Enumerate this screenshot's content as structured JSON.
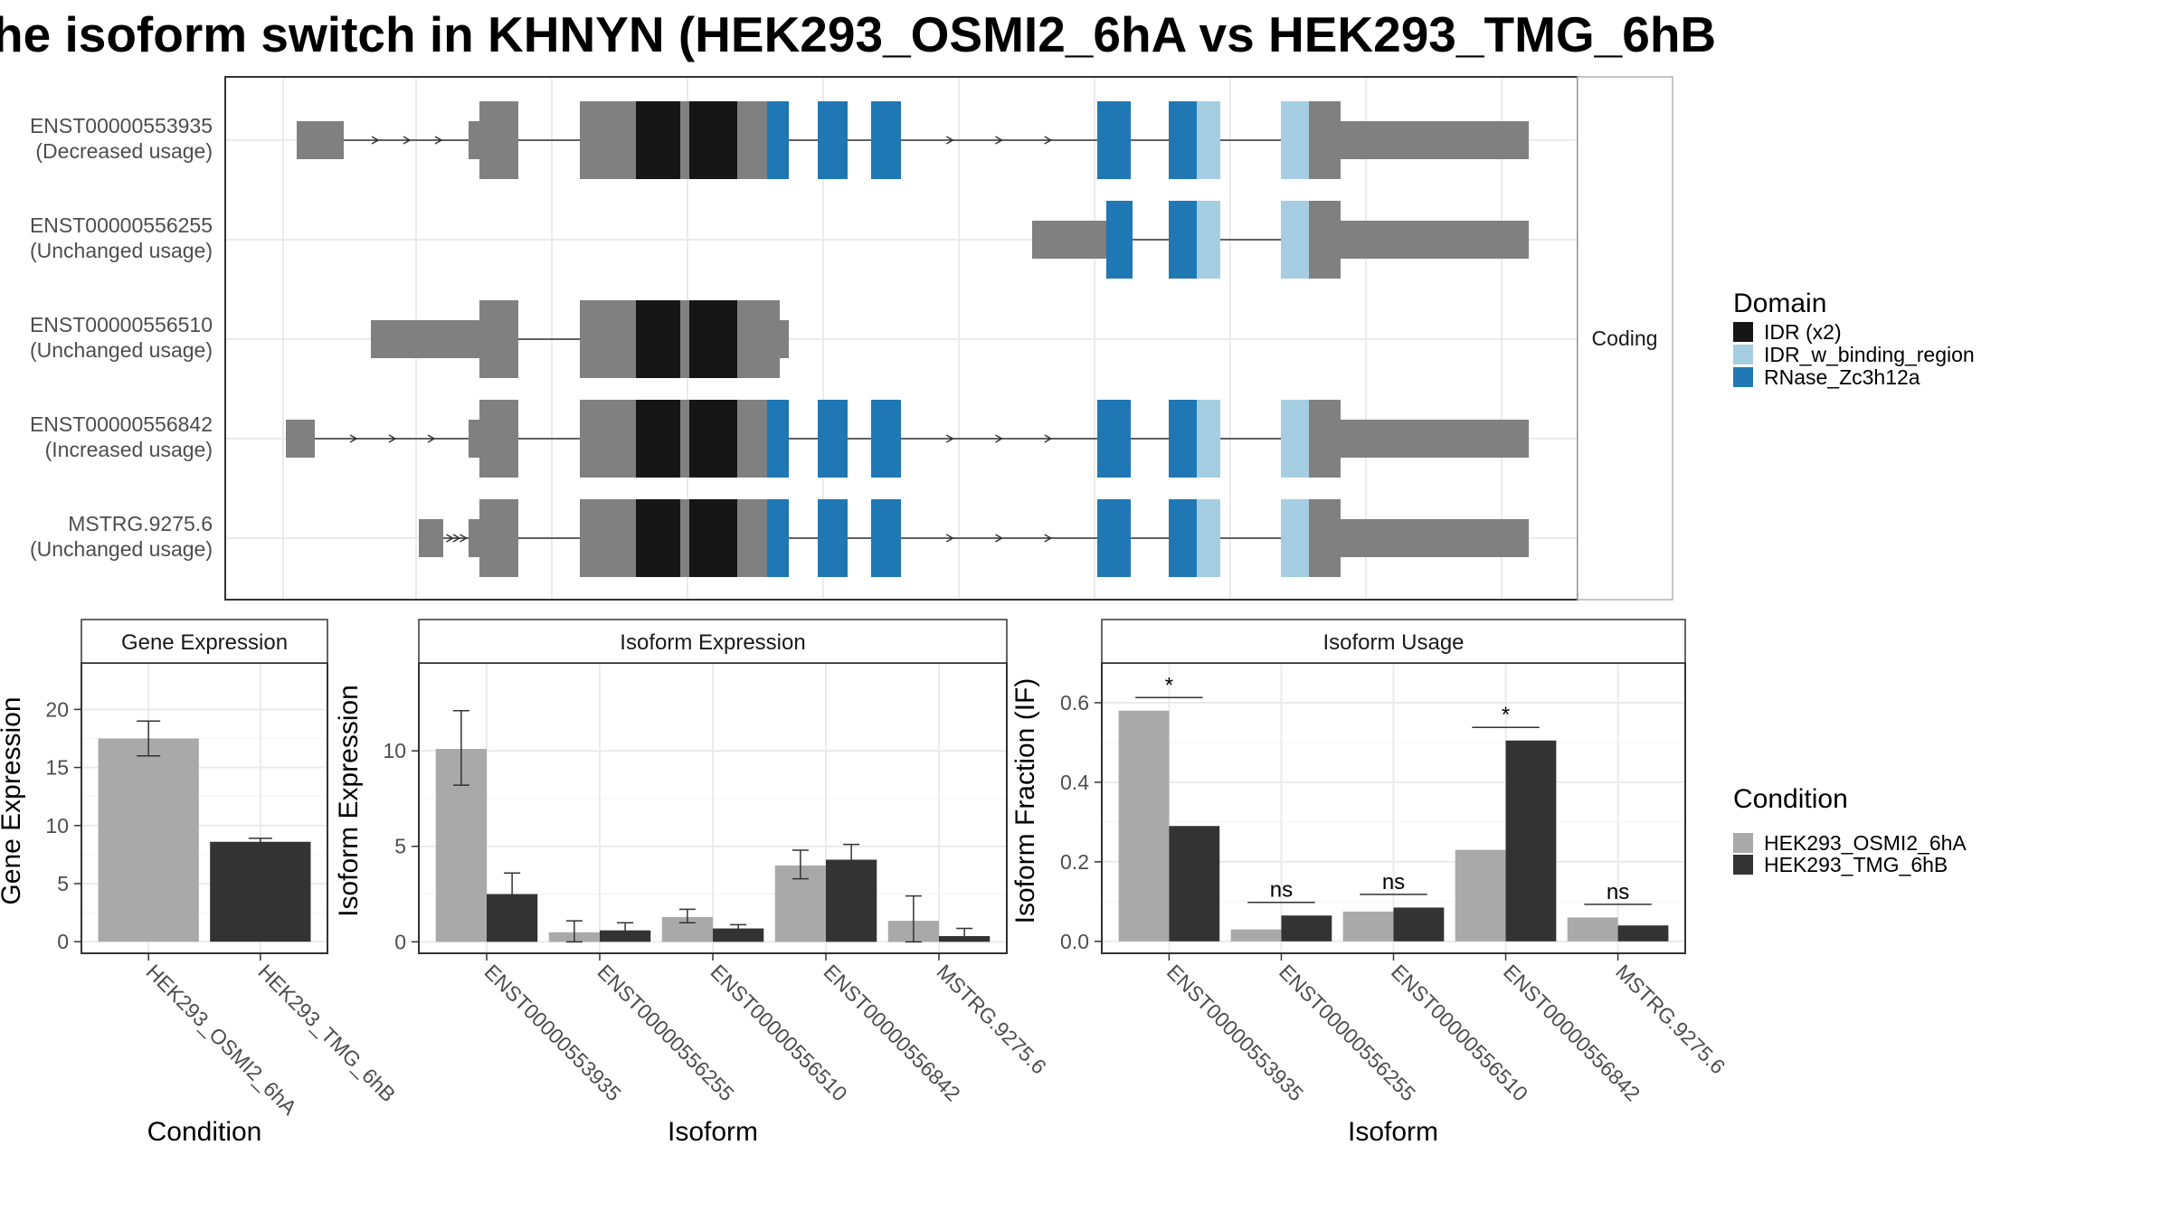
{
  "title": "he isoform switch in KHNYN (HEK293_OSMI2_6hA vs HEK293_TMG_6hB",
  "colors": {
    "exon": "#808080",
    "idr": "#161616",
    "idr_binding": "#a6cee3",
    "rnase": "#1f78b4",
    "cond_a": "#a9a9a9",
    "cond_b": "#333333",
    "grid": "#ebebeb",
    "panel_border": "#333333",
    "strip_bg": "#ffffff"
  },
  "transcript_panel": {
    "facet_label": "Coding",
    "transcripts": [
      {
        "id": "ENST00000553935",
        "usage": "(Decreased usage)"
      },
      {
        "id": "ENST00000556255",
        "usage": "(Unchanged usage)"
      },
      {
        "id": "ENST00000556510",
        "usage": "(Unchanged usage)"
      },
      {
        "id": "ENST00000556842",
        "usage": "(Increased usage)"
      },
      {
        "id": "MSTRG.9275.6",
        "usage": "(Unchanged usage)"
      }
    ]
  },
  "domain_legend": {
    "title": "Domain",
    "items": [
      {
        "label": "IDR (x2)",
        "color": "#161616"
      },
      {
        "label": "IDR_w_binding_region",
        "color": "#a6cee3"
      },
      {
        "label": "RNase_Zc3h12a",
        "color": "#1f78b4"
      }
    ]
  },
  "condition_legend": {
    "title": "Condition",
    "items": [
      {
        "label": "HEK293_OSMI2_6hA",
        "color": "#a9a9a9"
      },
      {
        "label": "HEK293_TMG_6hB",
        "color": "#333333"
      }
    ]
  },
  "chart_data": [
    {
      "type": "bar",
      "title": "Gene Expression",
      "xlabel": "Condition",
      "ylabel": "Gene Expression",
      "categories": [
        "HEK293_OSMI2_6hA",
        "HEK293_TMG_6hB"
      ],
      "values": [
        17.5,
        8.6
      ],
      "error_low": [
        16.0,
        8.3
      ],
      "error_high": [
        19.0,
        8.9
      ],
      "ylim": [
        -1,
        24
      ],
      "yticks": [
        0,
        5,
        10,
        15,
        20
      ]
    },
    {
      "type": "bar",
      "title": "Isoform Expression",
      "xlabel": "Isoform",
      "ylabel": "Isoform Expression",
      "categories": [
        "ENST00000553935",
        "ENST00000556255",
        "ENST00000556510",
        "ENST00000556842",
        "MSTRG.9275.6"
      ],
      "series": [
        {
          "name": "HEK293_OSMI2_6hA",
          "values": [
            10.1,
            0.5,
            1.3,
            4.0,
            1.1
          ],
          "error_low": [
            8.2,
            0.0,
            1.0,
            3.3,
            0.0
          ],
          "error_high": [
            12.1,
            1.1,
            1.7,
            4.8,
            2.4
          ]
        },
        {
          "name": "HEK293_TMG_6hB",
          "values": [
            2.5,
            0.6,
            0.7,
            4.3,
            0.3
          ],
          "error_low": [
            1.5,
            0.2,
            0.5,
            3.7,
            0.1
          ],
          "error_high": [
            3.6,
            1.0,
            0.9,
            5.1,
            0.7
          ]
        }
      ],
      "ylim": [
        -0.6,
        14.6
      ],
      "yticks": [
        0,
        5,
        10
      ]
    },
    {
      "type": "bar",
      "title": "Isoform Usage",
      "xlabel": "Isoform",
      "ylabel": "Isoform Fraction (IF)",
      "categories": [
        "ENST00000553935",
        "ENST00000556255",
        "ENST00000556510",
        "ENST00000556842",
        "MSTRG.9275.6"
      ],
      "series": [
        {
          "name": "HEK293_OSMI2_6hA",
          "values": [
            0.58,
            0.03,
            0.075,
            0.23,
            0.06
          ]
        },
        {
          "name": "HEK293_TMG_6hB",
          "values": [
            0.29,
            0.065,
            0.085,
            0.505,
            0.04
          ]
        }
      ],
      "significance": [
        "*",
        "ns",
        "ns",
        "*",
        "ns"
      ],
      "ylim": [
        -0.03,
        0.7
      ],
      "yticks": [
        0.0,
        0.2,
        0.4,
        0.6
      ],
      "ytick_labels": [
        "0.0",
        "0.2",
        "0.4",
        "0.6"
      ]
    }
  ]
}
